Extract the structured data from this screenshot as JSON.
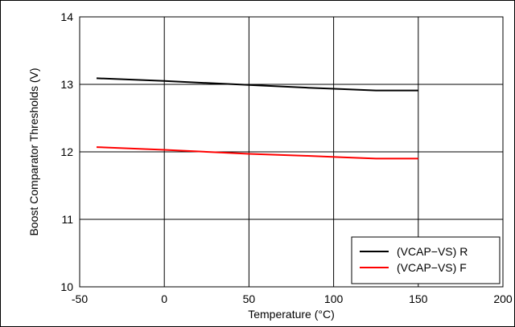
{
  "chart_data": {
    "type": "line",
    "title": "",
    "xlabel": "Temperature (°C)",
    "ylabel": "Boost Comparator Thresholds (V)",
    "xlim": [
      -50,
      200
    ],
    "ylim": [
      10,
      14
    ],
    "x_ticks": [
      -50,
      0,
      50,
      100,
      150,
      200
    ],
    "y_ticks": [
      10,
      11,
      12,
      13,
      14
    ],
    "grid": true,
    "legend_position": "bottom-right",
    "series": [
      {
        "name": "(VCAP−VS) R",
        "color": "#000000",
        "x": [
          -40,
          0,
          25,
          50,
          85,
          105,
          125,
          150
        ],
        "y": [
          13.09,
          13.05,
          13.02,
          12.99,
          12.95,
          12.93,
          12.91,
          12.91
        ]
      },
      {
        "name": "(VCAP−VS) F",
        "color": "#ff0000",
        "x": [
          -40,
          0,
          25,
          50,
          85,
          105,
          125,
          150
        ],
        "y": [
          12.07,
          12.03,
          12.0,
          11.97,
          11.94,
          11.92,
          11.9,
          11.9
        ]
      }
    ]
  }
}
